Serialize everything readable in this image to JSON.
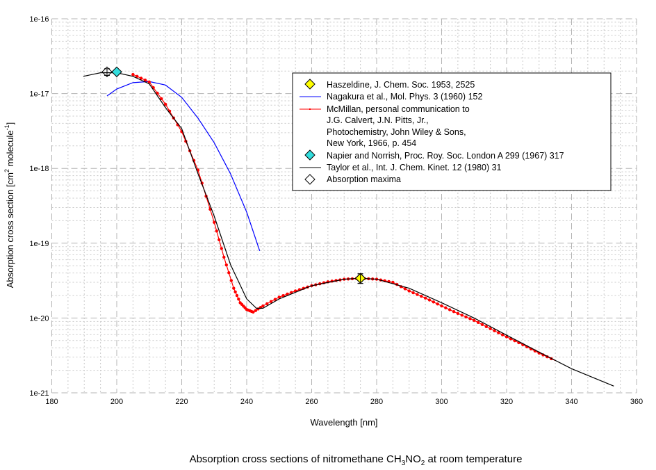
{
  "chart_data": {
    "type": "line",
    "title": "Absorption cross sections of nitromethane CH3NO2 at room temperature",
    "title_parts": {
      "pre": "Absorption cross sections of nitromethane CH",
      "sub1": "3",
      "mid": "NO",
      "sub2": "2",
      "post": " at room temperature"
    },
    "xlabel": "Wavelength [nm]",
    "ylabel_parts": {
      "pre": "Absorption cross section [cm",
      "sup1": "2",
      "mid": " molecule",
      "sup2": "-1",
      "post": "]"
    },
    "xlim": [
      180,
      360
    ],
    "ylim": [
      1e-21,
      1e-16
    ],
    "yscale": "log",
    "grid": true,
    "legend_position": "top-right",
    "x_ticks": [
      "180",
      "200",
      "220",
      "240",
      "260",
      "280",
      "300",
      "320",
      "340",
      "360"
    ],
    "y_ticks": [
      "1e-21",
      "1e-20",
      "1e-19",
      "1e-18",
      "1e-17",
      "1e-16"
    ],
    "series": [
      {
        "name": "Haszeldine, J. Chem. Soc. 1953, 2525",
        "kind": "marker",
        "marker": "diamond",
        "color": "#ffff00",
        "x": [
          275
        ],
        "y": [
          3.4e-20
        ],
        "yerr": [
          [
            2.9e-20,
            3.9e-20
          ]
        ]
      },
      {
        "name": "Nagakura et al.,  Mol. Phys. 3 (1960) 152",
        "kind": "line",
        "color": "#0000ff",
        "x": [
          197,
          200,
          205,
          210,
          215,
          220,
          225,
          230,
          235,
          240,
          244
        ],
        "y": [
          9.3e-18,
          1.15e-17,
          1.4e-17,
          1.45e-17,
          1.3e-17,
          8.9e-18,
          4.7e-18,
          2.2e-18,
          8.5e-19,
          2.6e-19,
          7.9e-20
        ]
      },
      {
        "name_lines": [
          "McMillan, personal communication to",
          "J.G. Calvert, J.N. Pitts, Jr.,",
          "Photochemistry, John Wiley & Sons,",
          "New York, 1966, p. 454"
        ],
        "kind": "line-dots",
        "color": "#ff0000",
        "x": [
          205,
          210,
          215,
          220,
          225,
          230,
          233,
          236,
          238,
          240,
          242,
          245,
          250,
          255,
          260,
          265,
          270,
          275,
          280,
          285,
          290,
          295,
          300,
          305,
          310,
          315,
          320,
          325,
          330,
          335
        ],
        "y": [
          1.8e-17,
          1.43e-17,
          7.2e-18,
          3.1e-18,
          9.5e-19,
          1.9e-19,
          6.5e-20,
          2.5e-20,
          1.6e-20,
          1.3e-20,
          1.2e-20,
          1.45e-20,
          1.9e-20,
          2.3e-20,
          2.7e-20,
          3.05e-20,
          3.3e-20,
          3.4e-20,
          3.3e-20,
          3e-20,
          2.3e-20,
          1.85e-20,
          1.45e-20,
          1.15e-20,
          9.3e-21,
          7.2e-21,
          5.6e-21,
          4.4e-21,
          3.4e-21,
          2.7e-21
        ]
      },
      {
        "name": "Napier and Norrish,  Proc. Roy. Soc. London A 299 (1967) 317",
        "kind": "marker",
        "marker": "diamond",
        "color": "#33dddd",
        "x": [
          200
        ],
        "y": [
          1.95e-17
        ]
      },
      {
        "name": "Taylor et al.,  Int. J. Chem. Kinet. 12 (1980) 31",
        "kind": "line",
        "color": "#000000",
        "x": [
          189.7,
          195,
          200,
          205,
          210,
          215,
          220,
          225,
          230,
          235,
          240,
          243,
          245,
          250,
          260,
          270,
          275,
          280,
          290,
          300,
          310,
          320,
          330,
          340,
          353
        ],
        "y": [
          1.7e-17,
          1.9e-17,
          1.9e-17,
          1.7e-17,
          1.35e-17,
          6.5e-18,
          3.4e-18,
          8.5e-19,
          2.3e-19,
          5.2e-20,
          1.8e-20,
          1.35e-20,
          1.35e-20,
          1.8e-20,
          2.7e-20,
          3.3e-20,
          3.4e-20,
          3.3e-20,
          2.5e-20,
          1.6e-20,
          1e-20,
          5.9e-21,
          3.5e-21,
          2.1e-21,
          1.23e-21
        ]
      },
      {
        "name": "Absorption maxima",
        "kind": "marker",
        "marker": "diamond-open",
        "color": "#ffffff",
        "x": [
          197,
          275
        ],
        "y": [
          1.95e-17,
          3.4e-20
        ],
        "yerr": [
          [
            1.75e-17,
            2.15e-17
          ],
          [
            2.9e-20,
            3.9e-20
          ]
        ]
      }
    ]
  }
}
